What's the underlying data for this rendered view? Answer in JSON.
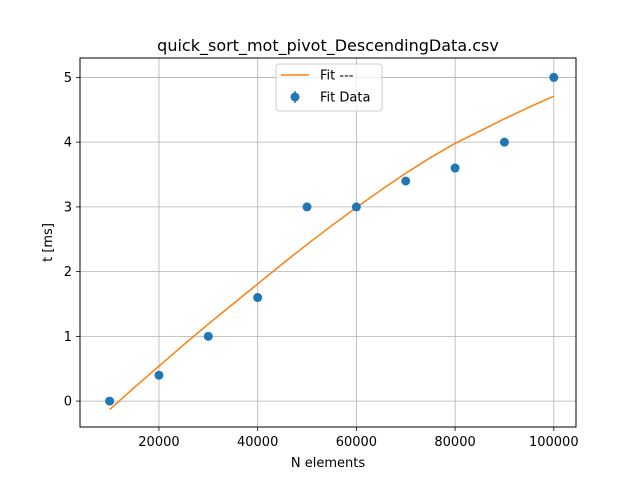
{
  "chart_data": {
    "type": "scatter",
    "title": "quick_sort_mot_pivot_DescendingData.csv",
    "xlabel": "N elements",
    "ylabel": "t [ms]",
    "xlim": [
      4000,
      104500
    ],
    "ylim": [
      -0.4,
      5.3
    ],
    "grid": true,
    "legend_position": "top-center",
    "x_ticks": [
      20000,
      40000,
      60000,
      80000,
      100000
    ],
    "y_ticks": [
      0,
      1,
      2,
      3,
      4,
      5
    ],
    "series": [
      {
        "name": "Fit ---",
        "kind": "line",
        "color": "#ff7f0e",
        "x": [
          10000,
          15000,
          20000,
          25000,
          30000,
          35000,
          40000,
          45000,
          50000,
          55000,
          60000,
          65000,
          70000,
          75000,
          80000,
          85000,
          90000,
          95000,
          100000
        ],
        "y": [
          -0.13,
          0.21,
          0.54,
          0.87,
          1.19,
          1.5,
          1.81,
          2.12,
          2.42,
          2.71,
          2.99,
          3.26,
          3.52,
          3.76,
          3.98,
          4.17,
          4.36,
          4.54,
          4.71
        ]
      },
      {
        "name": "Fit Data",
        "kind": "errorbar-points",
        "color": "#1f77b4",
        "x": [
          10000,
          20000,
          30000,
          40000,
          50000,
          60000,
          70000,
          80000,
          90000,
          100000
        ],
        "y": [
          0.0,
          0.4,
          1.0,
          1.6,
          3.0,
          3.0,
          3.4,
          3.6,
          4.0,
          5.0
        ]
      }
    ]
  }
}
